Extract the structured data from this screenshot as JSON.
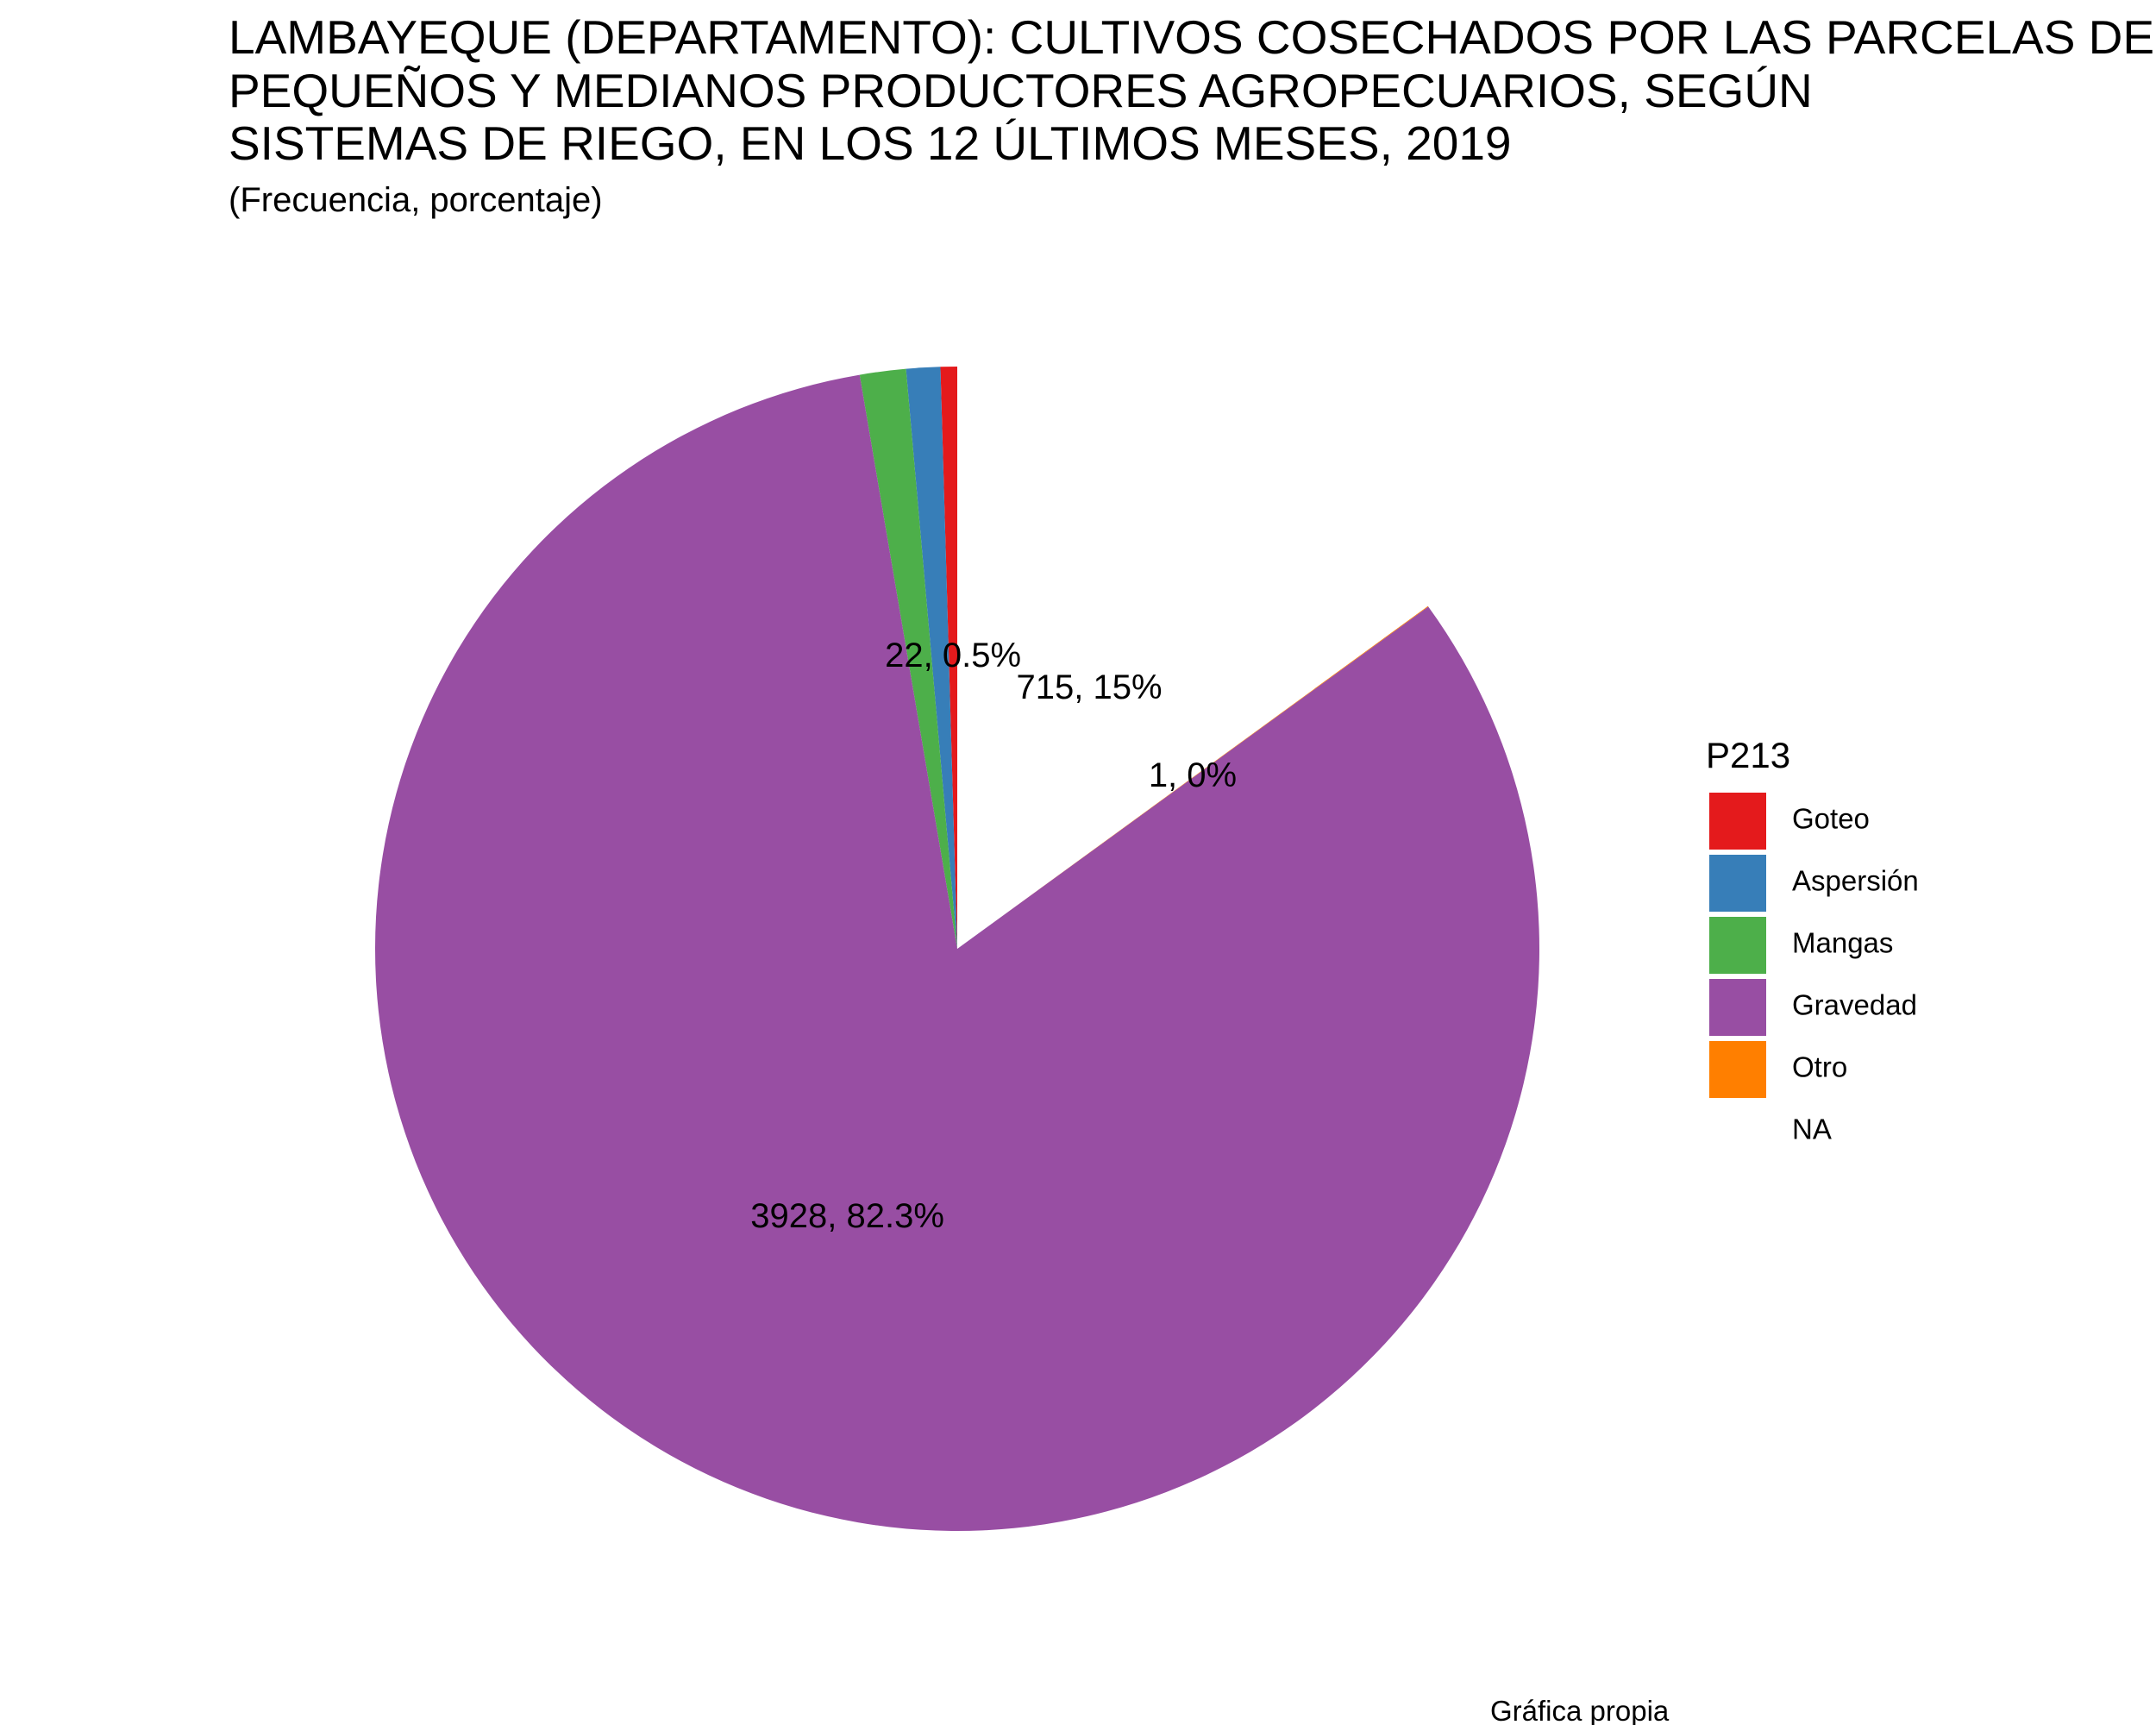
{
  "chart_data": {
    "type": "pie",
    "title_lines": [
      "LAMBAYEQUE (DEPARTAMENTO): CULTIVOS COSECHADOS POR LAS PARCELAS DE",
      "PEQUEÑOS Y MEDIANOS PRODUCTORES AGROPECUARIOS, SEGÚN",
      "SISTEMAS DE RIEGO, EN LOS 12 ÚLTIMOS MESES, 2019"
    ],
    "subtitle": "(Frecuencia, porcentaje)",
    "caption": "Gráfica propia",
    "legend_title": "P213",
    "legend_position": "right",
    "slices": [
      {
        "category": "Goteo",
        "value": 22,
        "percent": 0.5,
        "label": "22, 0.5%",
        "color": "#e41a1c"
      },
      {
        "category": "Aspersión",
        "value": 45,
        "percent": 0.9,
        "label": "",
        "color": "#377eb8"
      },
      {
        "category": "Mangas",
        "value": 61,
        "percent": 1.3,
        "label": "",
        "color": "#4daf4a"
      },
      {
        "category": "Gravedad",
        "value": 3928,
        "percent": 82.3,
        "label": "3928, 82.3%",
        "color": "#984ea3"
      },
      {
        "category": "Otro",
        "value": 1,
        "percent": 0.0,
        "label": "1, 0%",
        "color": "#ff7f00"
      },
      {
        "category": "NA",
        "value": 715,
        "percent": 15,
        "label": "715, 15%",
        "color": "#ffffff"
      }
    ]
  }
}
